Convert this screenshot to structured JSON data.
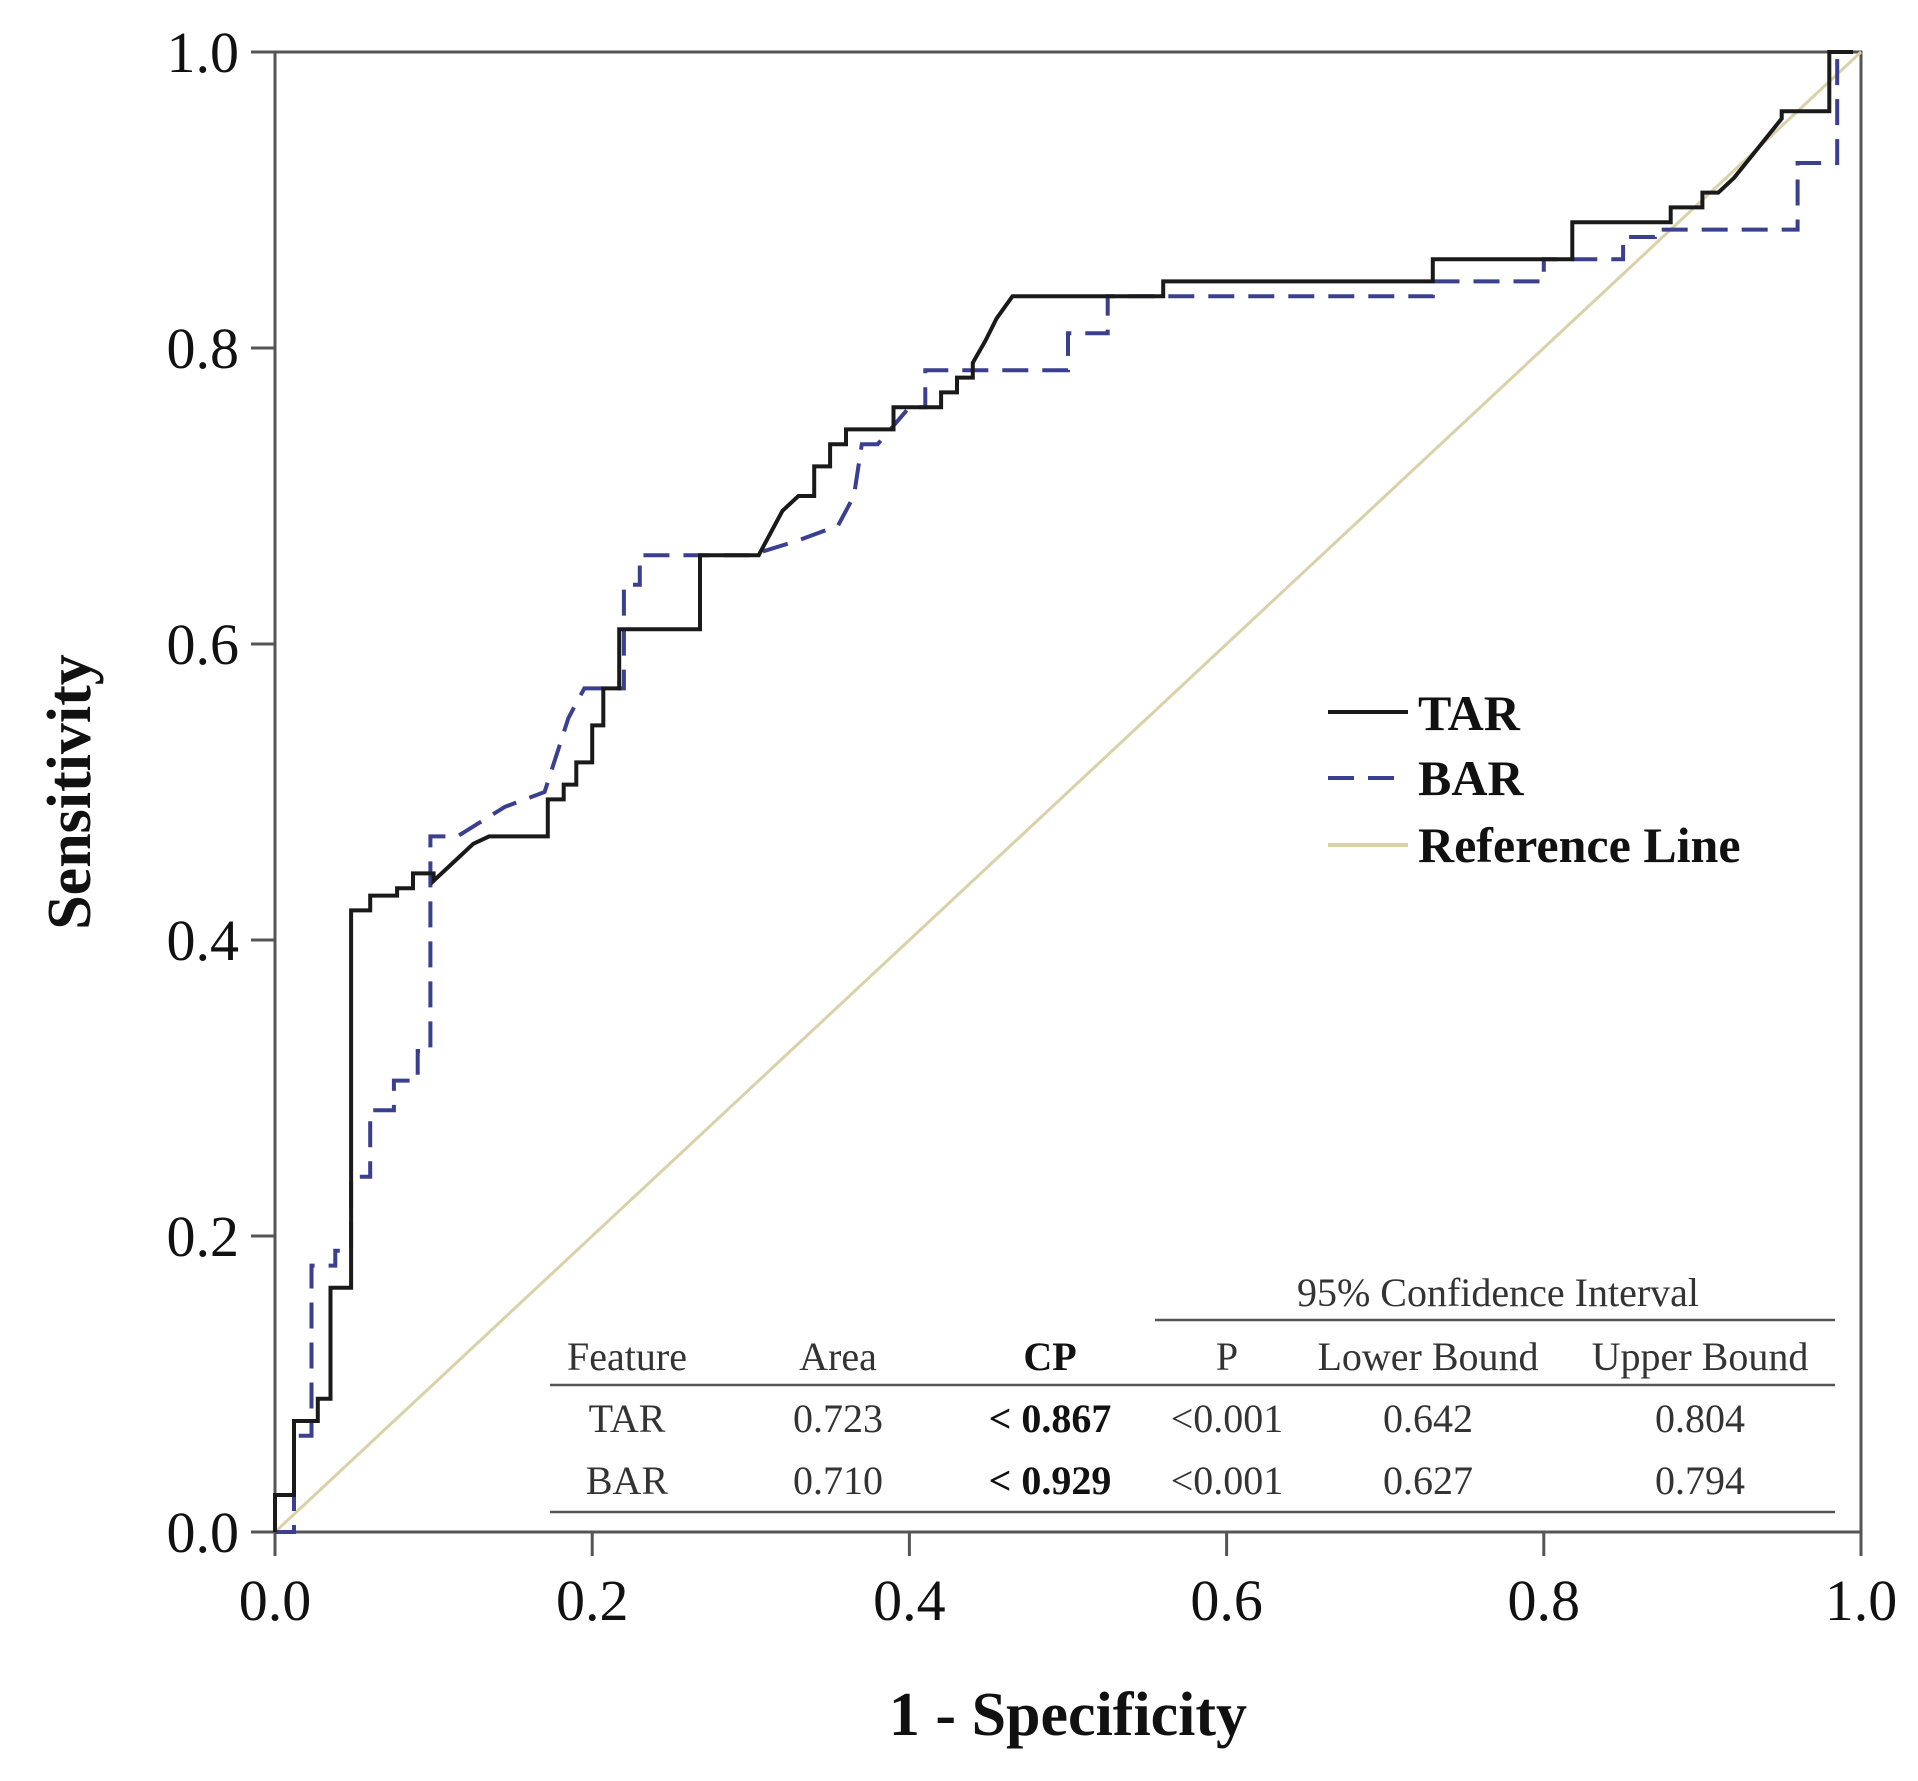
{
  "chart_data": {
    "type": "line",
    "title": "",
    "xlabel": "1 - Specificity",
    "ylabel": "Sensitivity",
    "xlim": [
      0,
      1
    ],
    "ylim": [
      0,
      1
    ],
    "xticks": [
      "0.0",
      "0.2",
      "0.4",
      "0.6",
      "0.8",
      "1.0"
    ],
    "yticks": [
      "0.0",
      "0.2",
      "0.4",
      "0.6",
      "0.8",
      "1.0"
    ],
    "legend_position": "center-right",
    "series": [
      {
        "name": "TAR",
        "color": "#1a1a1a",
        "dash": "solid",
        "x": [
          0,
          0,
          0.012,
          0.012,
          0.027,
          0.027,
          0.035,
          0.035,
          0.048,
          0.048,
          0.06,
          0.06,
          0.077,
          0.077,
          0.087,
          0.087,
          0.1,
          0.1,
          0.11,
          0.125,
          0.135,
          0.145,
          0.172,
          0.172,
          0.182,
          0.182,
          0.19,
          0.19,
          0.2,
          0.2,
          0.207,
          0.207,
          0.217,
          0.217,
          0.23,
          0.23,
          0.268,
          0.268,
          0.305,
          0.32,
          0.33,
          0.34,
          0.34,
          0.35,
          0.35,
          0.36,
          0.36,
          0.39,
          0.39,
          0.42,
          0.42,
          0.43,
          0.43,
          0.44,
          0.44,
          0.448,
          0.455,
          0.465,
          0.465,
          0.56,
          0.56,
          0.73,
          0.73,
          0.818,
          0.818,
          0.87,
          0.88,
          0.88,
          0.9,
          0.9,
          0.91,
          0.92,
          0.935,
          0.95,
          0.95,
          0.98,
          0.98,
          0.995
        ],
        "y": [
          0,
          0.025,
          0.025,
          0.075,
          0.075,
          0.09,
          0.09,
          0.165,
          0.165,
          0.42,
          0.42,
          0.43,
          0.43,
          0.435,
          0.435,
          0.445,
          0.445,
          0.44,
          0.45,
          0.465,
          0.47,
          0.47,
          0.47,
          0.495,
          0.495,
          0.505,
          0.505,
          0.52,
          0.52,
          0.545,
          0.545,
          0.57,
          0.57,
          0.61,
          0.61,
          0.61,
          0.61,
          0.66,
          0.66,
          0.69,
          0.7,
          0.7,
          0.72,
          0.72,
          0.735,
          0.735,
          0.745,
          0.745,
          0.76,
          0.76,
          0.77,
          0.77,
          0.78,
          0.78,
          0.79,
          0.805,
          0.82,
          0.835,
          0.835,
          0.835,
          0.845,
          0.845,
          0.86,
          0.86,
          0.885,
          0.885,
          0.885,
          0.895,
          0.895,
          0.905,
          0.905,
          0.915,
          0.935,
          0.955,
          0.96,
          0.96,
          1.0,
          1.0
        ]
      },
      {
        "name": "BAR",
        "color": "#3a3f8f",
        "dash": "dashed",
        "x": [
          0,
          0.012,
          0.012,
          0.023,
          0.023,
          0.038,
          0.038,
          0.048,
          0.048,
          0.06,
          0.06,
          0.075,
          0.075,
          0.09,
          0.09,
          0.098,
          0.098,
          0.115,
          0.13,
          0.145,
          0.17,
          0.185,
          0.195,
          0.22,
          0.22,
          0.23,
          0.23,
          0.245,
          0.245,
          0.3,
          0.33,
          0.355,
          0.365,
          0.37,
          0.38,
          0.4,
          0.41,
          0.41,
          0.5,
          0.5,
          0.525,
          0.525,
          0.56,
          0.58,
          0.73,
          0.73,
          0.8,
          0.8,
          0.85,
          0.85,
          0.87,
          0.87,
          0.96,
          0.96,
          0.985,
          0.985
        ],
        "y": [
          0,
          0,
          0.065,
          0.065,
          0.18,
          0.18,
          0.19,
          0.19,
          0.24,
          0.24,
          0.285,
          0.285,
          0.305,
          0.305,
          0.325,
          0.325,
          0.47,
          0.47,
          0.48,
          0.49,
          0.5,
          0.55,
          0.57,
          0.57,
          0.64,
          0.64,
          0.66,
          0.66,
          0.66,
          0.66,
          0.67,
          0.68,
          0.7,
          0.735,
          0.735,
          0.76,
          0.76,
          0.785,
          0.785,
          0.81,
          0.81,
          0.835,
          0.835,
          0.835,
          0.835,
          0.845,
          0.845,
          0.86,
          0.86,
          0.875,
          0.875,
          0.88,
          0.88,
          0.925,
          0.925,
          1.0
        ]
      },
      {
        "name": "Reference Line",
        "color": "#d9d2a9",
        "dash": "solid",
        "x": [
          0,
          1
        ],
        "y": [
          0,
          1
        ]
      }
    ],
    "table": {
      "group_header": "95% Confidence Interval",
      "headers": [
        "Feature",
        "Area",
        "CP",
        "P",
        "Lower Bound",
        "Upper Bound"
      ],
      "rows": [
        [
          "TAR",
          "0.723",
          "< 0.867",
          "<0.001",
          "0.642",
          "0.804"
        ],
        [
          "BAR",
          "0.710",
          "< 0.929",
          "<0.001",
          "0.627",
          "0.794"
        ]
      ]
    }
  }
}
